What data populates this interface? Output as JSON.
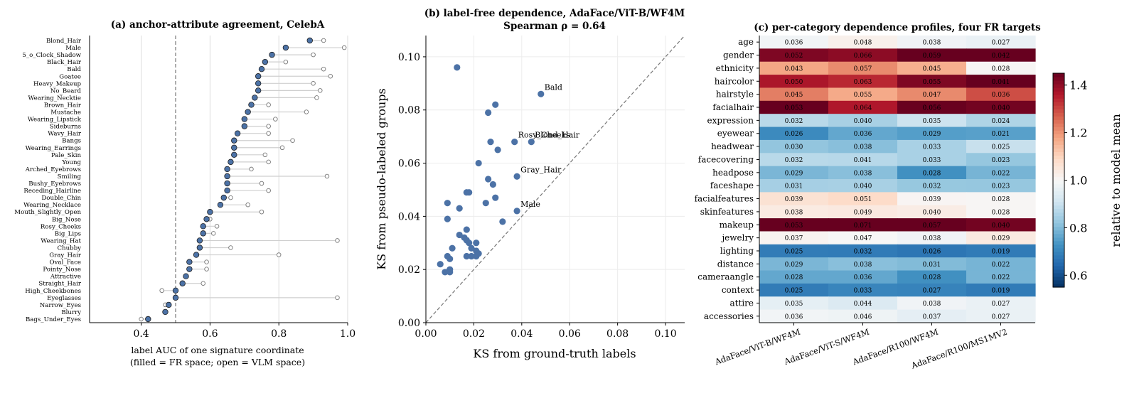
{
  "chart_data": [
    {
      "type": "scatter",
      "title": "(a) anchor-attribute agreement, CelebA",
      "xlabel": "label AUC of one signature coordinate",
      "xlabel2": "(filled = FR space; open = VLM space)",
      "xlim": [
        0.25,
        1.0
      ],
      "xticks": [
        "0.4",
        "0.6",
        "0.8",
        "1.0"
      ],
      "xtick_values": [
        0.4,
        0.6,
        0.8,
        1.0
      ],
      "reference_line": 0.5,
      "grid": "vertical",
      "markers": {
        "filled": "#4c72a6",
        "open": "#ffffff"
      },
      "attributes": [
        {
          "name": "Blond_Hair",
          "fr": 0.89,
          "vlm": 0.93
        },
        {
          "name": "Male",
          "fr": 0.82,
          "vlm": 0.99
        },
        {
          "name": "5_o_Clock_Shadow",
          "fr": 0.78,
          "vlm": 0.9
        },
        {
          "name": "Black_Hair",
          "fr": 0.76,
          "vlm": 0.82
        },
        {
          "name": "Bald",
          "fr": 0.75,
          "vlm": 0.93
        },
        {
          "name": "Goatee",
          "fr": 0.74,
          "vlm": 0.95
        },
        {
          "name": "Heavy_Makeup",
          "fr": 0.74,
          "vlm": 0.9
        },
        {
          "name": "No_Beard",
          "fr": 0.74,
          "vlm": 0.92
        },
        {
          "name": "Wearing_Necktie",
          "fr": 0.73,
          "vlm": 0.91
        },
        {
          "name": "Brown_Hair",
          "fr": 0.72,
          "vlm": 0.77
        },
        {
          "name": "Mustache",
          "fr": 0.71,
          "vlm": 0.88
        },
        {
          "name": "Wearing_Lipstick",
          "fr": 0.7,
          "vlm": 0.79
        },
        {
          "name": "Sideburns",
          "fr": 0.7,
          "vlm": 0.77
        },
        {
          "name": "Wavy_Hair",
          "fr": 0.68,
          "vlm": 0.77
        },
        {
          "name": "Bangs",
          "fr": 0.67,
          "vlm": 0.84
        },
        {
          "name": "Wearing_Earrings",
          "fr": 0.67,
          "vlm": 0.81
        },
        {
          "name": "Pale_Skin",
          "fr": 0.67,
          "vlm": 0.76
        },
        {
          "name": "Young",
          "fr": 0.66,
          "vlm": 0.77
        },
        {
          "name": "Arched_Eyebrows",
          "fr": 0.65,
          "vlm": 0.72
        },
        {
          "name": "Smiling",
          "fr": 0.65,
          "vlm": 0.94
        },
        {
          "name": "Bushy_Eyebrows",
          "fr": 0.65,
          "vlm": 0.75
        },
        {
          "name": "Receding_Hairline",
          "fr": 0.65,
          "vlm": 0.77
        },
        {
          "name": "Double_Chin",
          "fr": 0.64,
          "vlm": 0.66
        },
        {
          "name": "Wearing_Necklace",
          "fr": 0.63,
          "vlm": 0.71
        },
        {
          "name": "Mouth_Slightly_Open",
          "fr": 0.6,
          "vlm": 0.75
        },
        {
          "name": "Big_Nose",
          "fr": 0.59,
          "vlm": 0.6
        },
        {
          "name": "Rosy_Cheeks",
          "fr": 0.58,
          "vlm": 0.62
        },
        {
          "name": "Big_Lips",
          "fr": 0.58,
          "vlm": 0.61
        },
        {
          "name": "Wearing_Hat",
          "fr": 0.57,
          "vlm": 0.97
        },
        {
          "name": "Chubby",
          "fr": 0.57,
          "vlm": 0.66
        },
        {
          "name": "Gray_Hair",
          "fr": 0.56,
          "vlm": 0.8
        },
        {
          "name": "Oval_Face",
          "fr": 0.54,
          "vlm": 0.59
        },
        {
          "name": "Pointy_Nose",
          "fr": 0.54,
          "vlm": 0.59
        },
        {
          "name": "Attractive",
          "fr": 0.53,
          "vlm": 0.53
        },
        {
          "name": "Straight_Hair",
          "fr": 0.52,
          "vlm": 0.58
        },
        {
          "name": "High_Cheekbones",
          "fr": 0.5,
          "vlm": 0.46
        },
        {
          "name": "Eyeglasses",
          "fr": 0.5,
          "vlm": 0.97
        },
        {
          "name": "Narrow_Eyes",
          "fr": 0.48,
          "vlm": 0.47
        },
        {
          "name": "Blurry",
          "fr": 0.47,
          "vlm": 0.47
        },
        {
          "name": "Bags_Under_Eyes",
          "fr": 0.42,
          "vlm": 0.4
        }
      ]
    },
    {
      "type": "scatter",
      "title": "(b) label-free dependence, AdaFace/ViT-B/WF4M",
      "subtitle": "Spearman ρ = 0.64",
      "xlabel": "KS from ground-truth labels",
      "ylabel": "KS from pseudo-labeled groups",
      "xlim": [
        0.0,
        0.108
      ],
      "ylim": [
        0.0,
        0.108
      ],
      "xticks": [
        "0.00",
        "0.02",
        "0.04",
        "0.06",
        "0.08",
        "0.10"
      ],
      "yticks": [
        "0.00",
        "0.02",
        "0.04",
        "0.06",
        "0.08",
        "0.10"
      ],
      "tick_values": [
        0.0,
        0.02,
        0.04,
        0.06,
        0.08,
        0.1
      ],
      "diagonal": true,
      "grid": true,
      "point_color": "#4c72a6",
      "points": [
        [
          0.013,
          0.096
        ],
        [
          0.048,
          0.086
        ],
        [
          0.029,
          0.082
        ],
        [
          0.026,
          0.079
        ],
        [
          0.027,
          0.068
        ],
        [
          0.037,
          0.068
        ],
        [
          0.044,
          0.068
        ],
        [
          0.03,
          0.065
        ],
        [
          0.022,
          0.06
        ],
        [
          0.038,
          0.055
        ],
        [
          0.026,
          0.054
        ],
        [
          0.028,
          0.052
        ],
        [
          0.017,
          0.049
        ],
        [
          0.018,
          0.049
        ],
        [
          0.029,
          0.047
        ],
        [
          0.009,
          0.045
        ],
        [
          0.025,
          0.045
        ],
        [
          0.014,
          0.043
        ],
        [
          0.038,
          0.042
        ],
        [
          0.009,
          0.039
        ],
        [
          0.032,
          0.038
        ],
        [
          0.017,
          0.035
        ],
        [
          0.014,
          0.033
        ],
        [
          0.016,
          0.032
        ],
        [
          0.017,
          0.031
        ],
        [
          0.021,
          0.03
        ],
        [
          0.018,
          0.03
        ],
        [
          0.011,
          0.028
        ],
        [
          0.019,
          0.028
        ],
        [
          0.021,
          0.027
        ],
        [
          0.022,
          0.026
        ],
        [
          0.009,
          0.025
        ],
        [
          0.017,
          0.025
        ],
        [
          0.019,
          0.025
        ],
        [
          0.01,
          0.024
        ],
        [
          0.006,
          0.022
        ],
        [
          0.01,
          0.02
        ],
        [
          0.008,
          0.019
        ],
        [
          0.01,
          0.019
        ],
        [
          0.021,
          0.025
        ]
      ],
      "annotations": [
        {
          "text": "Bald",
          "x": 0.048,
          "y": 0.086
        },
        {
          "text": "Rosy_Cheeks",
          "x": 0.037,
          "y": 0.068
        },
        {
          "text": "Blond_Hair",
          "x": 0.044,
          "y": 0.068
        },
        {
          "text": "Gray_Hair",
          "x": 0.038,
          "y": 0.055
        },
        {
          "text": "Male",
          "x": 0.038,
          "y": 0.042
        }
      ]
    },
    {
      "type": "heatmap",
      "title": "(c) per-category dependence profiles, four FR targets",
      "columns": [
        "AdaFace/ViT-B/WF4M",
        "AdaFace/ViT-S/WF4M",
        "AdaFace/R100/WF4M",
        "AdaFace/R100/MS1MV2"
      ],
      "rows": [
        "age",
        "gender",
        "ethnicity",
        "haircolor",
        "hairstyle",
        "facialhair",
        "expression",
        "eyewear",
        "headwear",
        "facecovering",
        "headpose",
        "faceshape",
        "facialfeatures",
        "skinfeatures",
        "makeup",
        "jewelry",
        "lighting",
        "distance",
        "cameraangle",
        "context",
        "attire",
        "accessories"
      ],
      "values": [
        [
          0.036,
          0.048,
          0.038,
          0.027
        ],
        [
          0.052,
          0.066,
          0.059,
          0.042
        ],
        [
          0.043,
          0.057,
          0.045,
          0.028
        ],
        [
          0.05,
          0.063,
          0.055,
          0.041
        ],
        [
          0.045,
          0.055,
          0.047,
          0.036
        ],
        [
          0.053,
          0.064,
          0.056,
          0.04
        ],
        [
          0.032,
          0.04,
          0.035,
          0.024
        ],
        [
          0.026,
          0.036,
          0.029,
          0.021
        ],
        [
          0.03,
          0.038,
          0.033,
          0.025
        ],
        [
          0.032,
          0.041,
          0.033,
          0.023
        ],
        [
          0.029,
          0.038,
          0.028,
          0.022
        ],
        [
          0.031,
          0.04,
          0.032,
          0.023
        ],
        [
          0.039,
          0.051,
          0.039,
          0.028
        ],
        [
          0.038,
          0.049,
          0.04,
          0.028
        ],
        [
          0.053,
          0.071,
          0.057,
          0.04
        ],
        [
          0.037,
          0.047,
          0.038,
          0.029
        ],
        [
          0.025,
          0.032,
          0.026,
          0.019
        ],
        [
          0.029,
          0.038,
          0.031,
          0.022
        ],
        [
          0.028,
          0.036,
          0.028,
          0.022
        ],
        [
          0.025,
          0.033,
          0.027,
          0.019
        ],
        [
          0.035,
          0.044,
          0.038,
          0.027
        ],
        [
          0.036,
          0.046,
          0.037,
          0.027
        ]
      ],
      "colorbar": {
        "label": "relative to model mean",
        "range": [
          0.55,
          1.45
        ],
        "ticks": [
          "0.6",
          "0.8",
          "1.0",
          "1.2",
          "1.4"
        ],
        "tick_values": [
          0.6,
          0.8,
          1.0,
          1.2,
          1.4
        ],
        "colormap": "RdBu_r"
      }
    }
  ]
}
